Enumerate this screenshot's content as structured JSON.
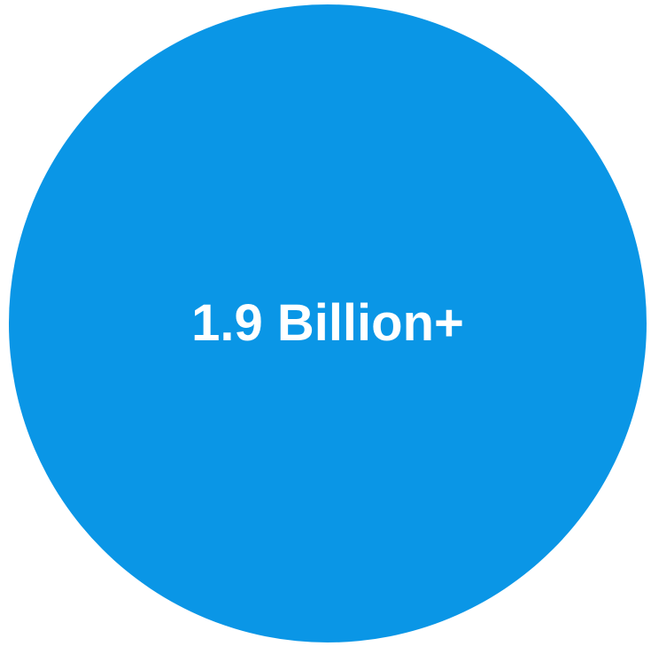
{
  "figure": {
    "label": "1.9 Billion+",
    "circle_color": "#0a96e6",
    "text_color": "#ffffff",
    "background_color": "#ffffff"
  }
}
